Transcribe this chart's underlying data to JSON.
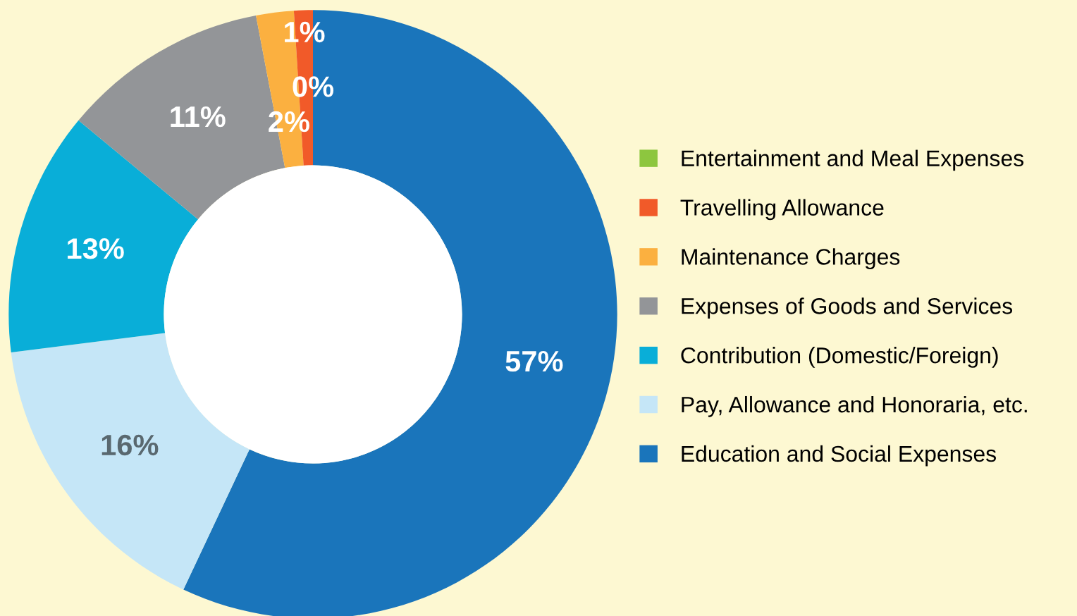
{
  "chart_data": {
    "type": "donut",
    "categories": [
      "Education and Social Expenses",
      "Pay, Allowance and Honoraria, etc.",
      "Contribution (Domestic/Foreign)",
      "Expenses of Goods and Services",
      "Maintenance Charges",
      "Travelling Allowance",
      "Entertainment and Meal Expenses"
    ],
    "values": [
      57,
      16,
      13,
      11,
      2,
      1,
      0
    ],
    "colors": [
      "#1a75bb",
      "#c5e6f7",
      "#09aed8",
      "#939598",
      "#fbb040",
      "#f15a29",
      "#8dc63f"
    ],
    "value_labels": [
      "57%",
      "16%",
      "13%",
      "11%",
      "2%",
      "1%",
      "0%"
    ],
    "legend": "right"
  }
}
